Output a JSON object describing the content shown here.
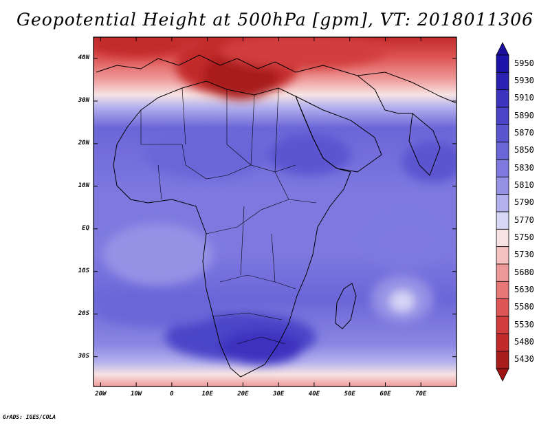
{
  "title": "Geopotential Height at 500hPa [gpm], VT: 2018011306",
  "footer": "GrADS: IGES/COLA",
  "map": {
    "region": "Africa",
    "lat_ticks": [
      "40N",
      "30N",
      "20N",
      "10N",
      "EQ",
      "10S",
      "20S",
      "30S"
    ],
    "lon_ticks": [
      "20W",
      "10W",
      "0",
      "10E",
      "20E",
      "30E",
      "40E",
      "50E",
      "60E",
      "70E"
    ],
    "lat_values": [
      40,
      30,
      20,
      10,
      0,
      -10,
      -20,
      -30
    ],
    "lon_values": [
      -20,
      -10,
      0,
      10,
      20,
      30,
      40,
      50,
      60,
      70
    ],
    "lon_range": [
      -22,
      80
    ],
    "lat_range": [
      -37,
      45
    ]
  },
  "colorbar": {
    "labels": [
      "5950",
      "5930",
      "5910",
      "5890",
      "5870",
      "5850",
      "5830",
      "5810",
      "5790",
      "5770",
      "5750",
      "5730",
      "5680",
      "5630",
      "5580",
      "5530",
      "5480",
      "5430"
    ],
    "colors": [
      "#1e13a8",
      "#2b22b3",
      "#3c33bf",
      "#4b44c8",
      "#5b55d0",
      "#6b66d8",
      "#7d79df",
      "#9592e6",
      "#b3b1ee",
      "#d8d7f6",
      "#f7e3e3",
      "#f5c1c1",
      "#ef9a9a",
      "#e77676",
      "#de5656",
      "#d23c3c",
      "#c32a2a",
      "#a91c1c"
    ]
  }
}
